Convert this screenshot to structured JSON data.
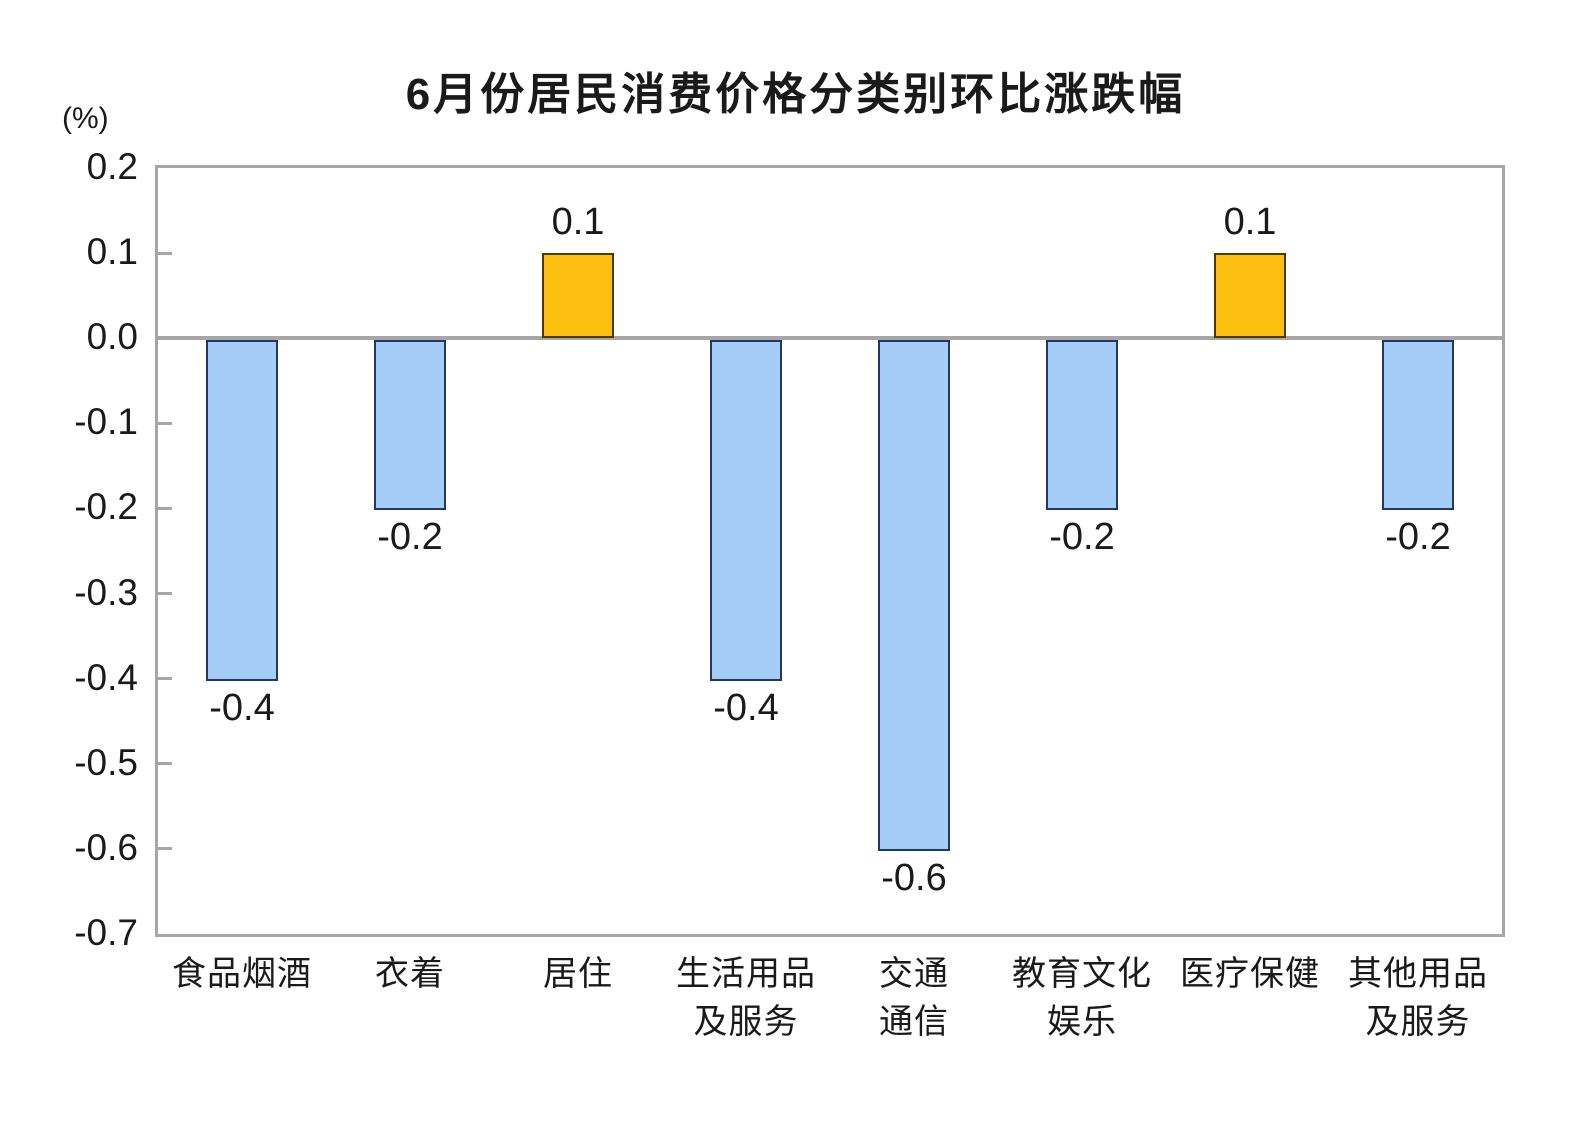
{
  "chart_data": {
    "type": "bar",
    "title": "6月份居民消费价格分类别环比涨跌幅",
    "ylabel": "(%)",
    "xlabel": "",
    "categories": [
      "食品烟酒",
      "衣着",
      "居住",
      "生活用品\n及服务",
      "交通\n通信",
      "教育文化\n娱乐",
      "医疗保健",
      "其他用品\n及服务"
    ],
    "values": [
      -0.4,
      -0.2,
      0.1,
      -0.4,
      -0.6,
      -0.2,
      0.1,
      -0.2
    ],
    "value_labels": [
      "-0.4",
      "-0.2",
      "0.1",
      "-0.4",
      "-0.6",
      "-0.2",
      "0.1",
      "-0.2"
    ],
    "ylim": [
      -0.7,
      0.2
    ],
    "yticks": [
      0.2,
      0.1,
      0.0,
      -0.1,
      -0.2,
      -0.3,
      -0.4,
      -0.5,
      -0.6,
      -0.7
    ],
    "ytick_labels": [
      "0.2",
      "0.1",
      "0.0",
      "-0.1",
      "-0.2",
      "-0.3",
      "-0.4",
      "-0.5",
      "-0.6",
      "-0.7"
    ],
    "grid": false,
    "legend": null,
    "colors": {
      "positive_bar": "#FCBF0F",
      "negative_bar": "#A5CCF5",
      "positive_bar_border": "#4A3A06",
      "negative_bar_border": "#1F3864",
      "axis": "#A6A6A6",
      "text": "#1A1A1A"
    }
  }
}
